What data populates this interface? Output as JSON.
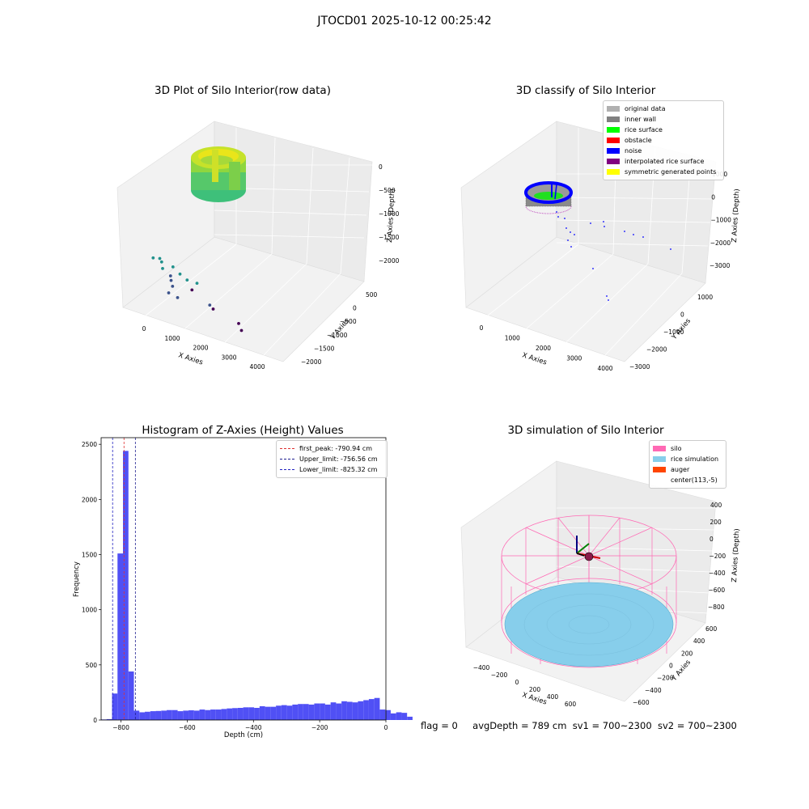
{
  "figure": {
    "suptitle": "JTOCD01 2025-10-12 00:25:42",
    "footer": {
      "flag": "flag = 0",
      "avg_depth": "avgDepth = 789 cm",
      "sv1": "sv1 = 700~2300",
      "sv2": "sv2 = 700~2300"
    }
  },
  "chart_data": [
    {
      "type": "scatter",
      "panel": "top-left",
      "title": "3D Plot of Silo Interior(row data)",
      "xlabel": "X Axies",
      "ylabel": "Y Axies",
      "zlabel": "Z Axies (Depth)",
      "x_ticks": [
        "0",
        "1000",
        "2000",
        "3000",
        "4000"
      ],
      "y_ticks": [
        "500",
        "0",
        "−500",
        "−1000",
        "−1500",
        "−2000"
      ],
      "z_ticks": [
        "0",
        "−500",
        "−1000",
        "−1500",
        "−2000"
      ],
      "points": [
        {
          "x": 1550,
          "y": -1500,
          "z": -880
        },
        {
          "x": 1850,
          "y": -1500,
          "z": -900
        },
        {
          "x": 2250,
          "y": -1500,
          "z": -920
        },
        {
          "x": 2500,
          "y": -1500,
          "z": -1000
        },
        {
          "x": 2750,
          "y": -1500,
          "z": -1060
        },
        {
          "x": 3100,
          "y": -1500,
          "z": -1060
        },
        {
          "x": 3550,
          "y": -1500,
          "z": -1350
        },
        {
          "x": 1500,
          "y": -1000,
          "z": -1030
        },
        {
          "x": 1600,
          "y": -1000,
          "z": -1180
        },
        {
          "x": 1900,
          "y": -1000,
          "z": -1330
        },
        {
          "x": 1950,
          "y": -1000,
          "z": -1420
        },
        {
          "x": 1650,
          "y": -600,
          "z": -1400
        },
        {
          "x": 1700,
          "y": -800,
          "z": -1620
        },
        {
          "x": 1900,
          "y": -600,
          "z": -1720
        },
        {
          "x": 1950,
          "y": 200,
          "z": -1800
        },
        {
          "x": 2700,
          "y": 200,
          "z": -2000
        },
        {
          "x": 3600,
          "y": 200,
          "z": -2100
        },
        {
          "x": 3700,
          "y": 200,
          "z": -2200
        }
      ],
      "colormap": "viridis",
      "grid": true
    },
    {
      "type": "scatter",
      "panel": "top-right",
      "title": "3D classify of Silo Interior",
      "xlabel": "X Axies",
      "ylabel": "Y Axies",
      "zlabel": "Z Axies (Depth)",
      "x_ticks": [
        "0",
        "1000",
        "2000",
        "3000",
        "4000"
      ],
      "y_ticks": [
        "1000",
        "0",
        "−1000",
        "−2000",
        "−3000"
      ],
      "z_ticks": [
        "1000",
        "0",
        "−1000",
        "−2000",
        "−3000"
      ],
      "legend": [
        {
          "label": "original data",
          "color": "#b0b0b0"
        },
        {
          "label": "inner wall",
          "color": "#808080"
        },
        {
          "label": "rice surface",
          "color": "#00ff00"
        },
        {
          "label": "obstacle",
          "color": "#ff0000"
        },
        {
          "label": "noise",
          "color": "#0000ff"
        },
        {
          "label": "interpolated rice surface",
          "color": "#800080"
        },
        {
          "label": "symmetric generated points",
          "color": "#ffff00"
        }
      ],
      "legend_placement": "top-right",
      "grid": true
    },
    {
      "type": "bar",
      "panel": "bottom-left",
      "title": "Histogram of Z-Axies (Height) Values",
      "xlabel": "Depth (cm)",
      "ylabel": "Frequency",
      "xlim": [
        -860,
        0
      ],
      "ylim": [
        0,
        2560
      ],
      "x_ticks": [
        -800,
        -600,
        -400,
        -200,
        0
      ],
      "y_ticks": [
        0,
        500,
        1000,
        1500,
        2000,
        2500
      ],
      "bin_start": -860,
      "bin_width": 16.5,
      "values": [
        5,
        8,
        240,
        1510,
        2440,
        440,
        85,
        70,
        75,
        80,
        82,
        85,
        90,
        90,
        80,
        85,
        88,
        85,
        95,
        90,
        95,
        95,
        100,
        105,
        108,
        110,
        115,
        115,
        110,
        125,
        120,
        120,
        130,
        135,
        130,
        140,
        145,
        145,
        140,
        150,
        150,
        140,
        160,
        150,
        170,
        165,
        160,
        170,
        180,
        190,
        200,
        95,
        90,
        60,
        70,
        65,
        30
      ],
      "bar_color": "#5050f5",
      "vlines": [
        {
          "label": "first_peak: -790.94 cm",
          "x": -790.94,
          "color": "#e03030"
        },
        {
          "label": "Upper_limit: -756.56 cm",
          "x": -756.56,
          "color": "#202090"
        },
        {
          "label": "Lower_limit: -825.32 cm",
          "x": -825.32,
          "color": "#2020c0"
        }
      ],
      "legend_placement": "top-right"
    },
    {
      "type": "scatter",
      "panel": "bottom-right",
      "title": "3D simulation of Silo Interior",
      "xlabel": "X Axies",
      "ylabel": "Y Axies",
      "zlabel": "Z Axies (Depth)",
      "x_ticks": [
        "−400",
        "−200",
        "0",
        "200",
        "400",
        "600"
      ],
      "y_ticks": [
        "600",
        "400",
        "200",
        "0",
        "−200",
        "−400",
        "−600"
      ],
      "z_ticks": [
        "400",
        "200",
        "0",
        "−200",
        "−400",
        "−600",
        "−800"
      ],
      "legend": [
        {
          "label": "silo",
          "color": "#ff69b4"
        },
        {
          "label": "rice simulation",
          "color": "#87ceeb"
        },
        {
          "label": "auger",
          "color": "#ff4500"
        },
        {
          "label": "center(113,-5)",
          "color": "none"
        }
      ],
      "legend_placement": "top-right",
      "grid": true
    }
  ]
}
